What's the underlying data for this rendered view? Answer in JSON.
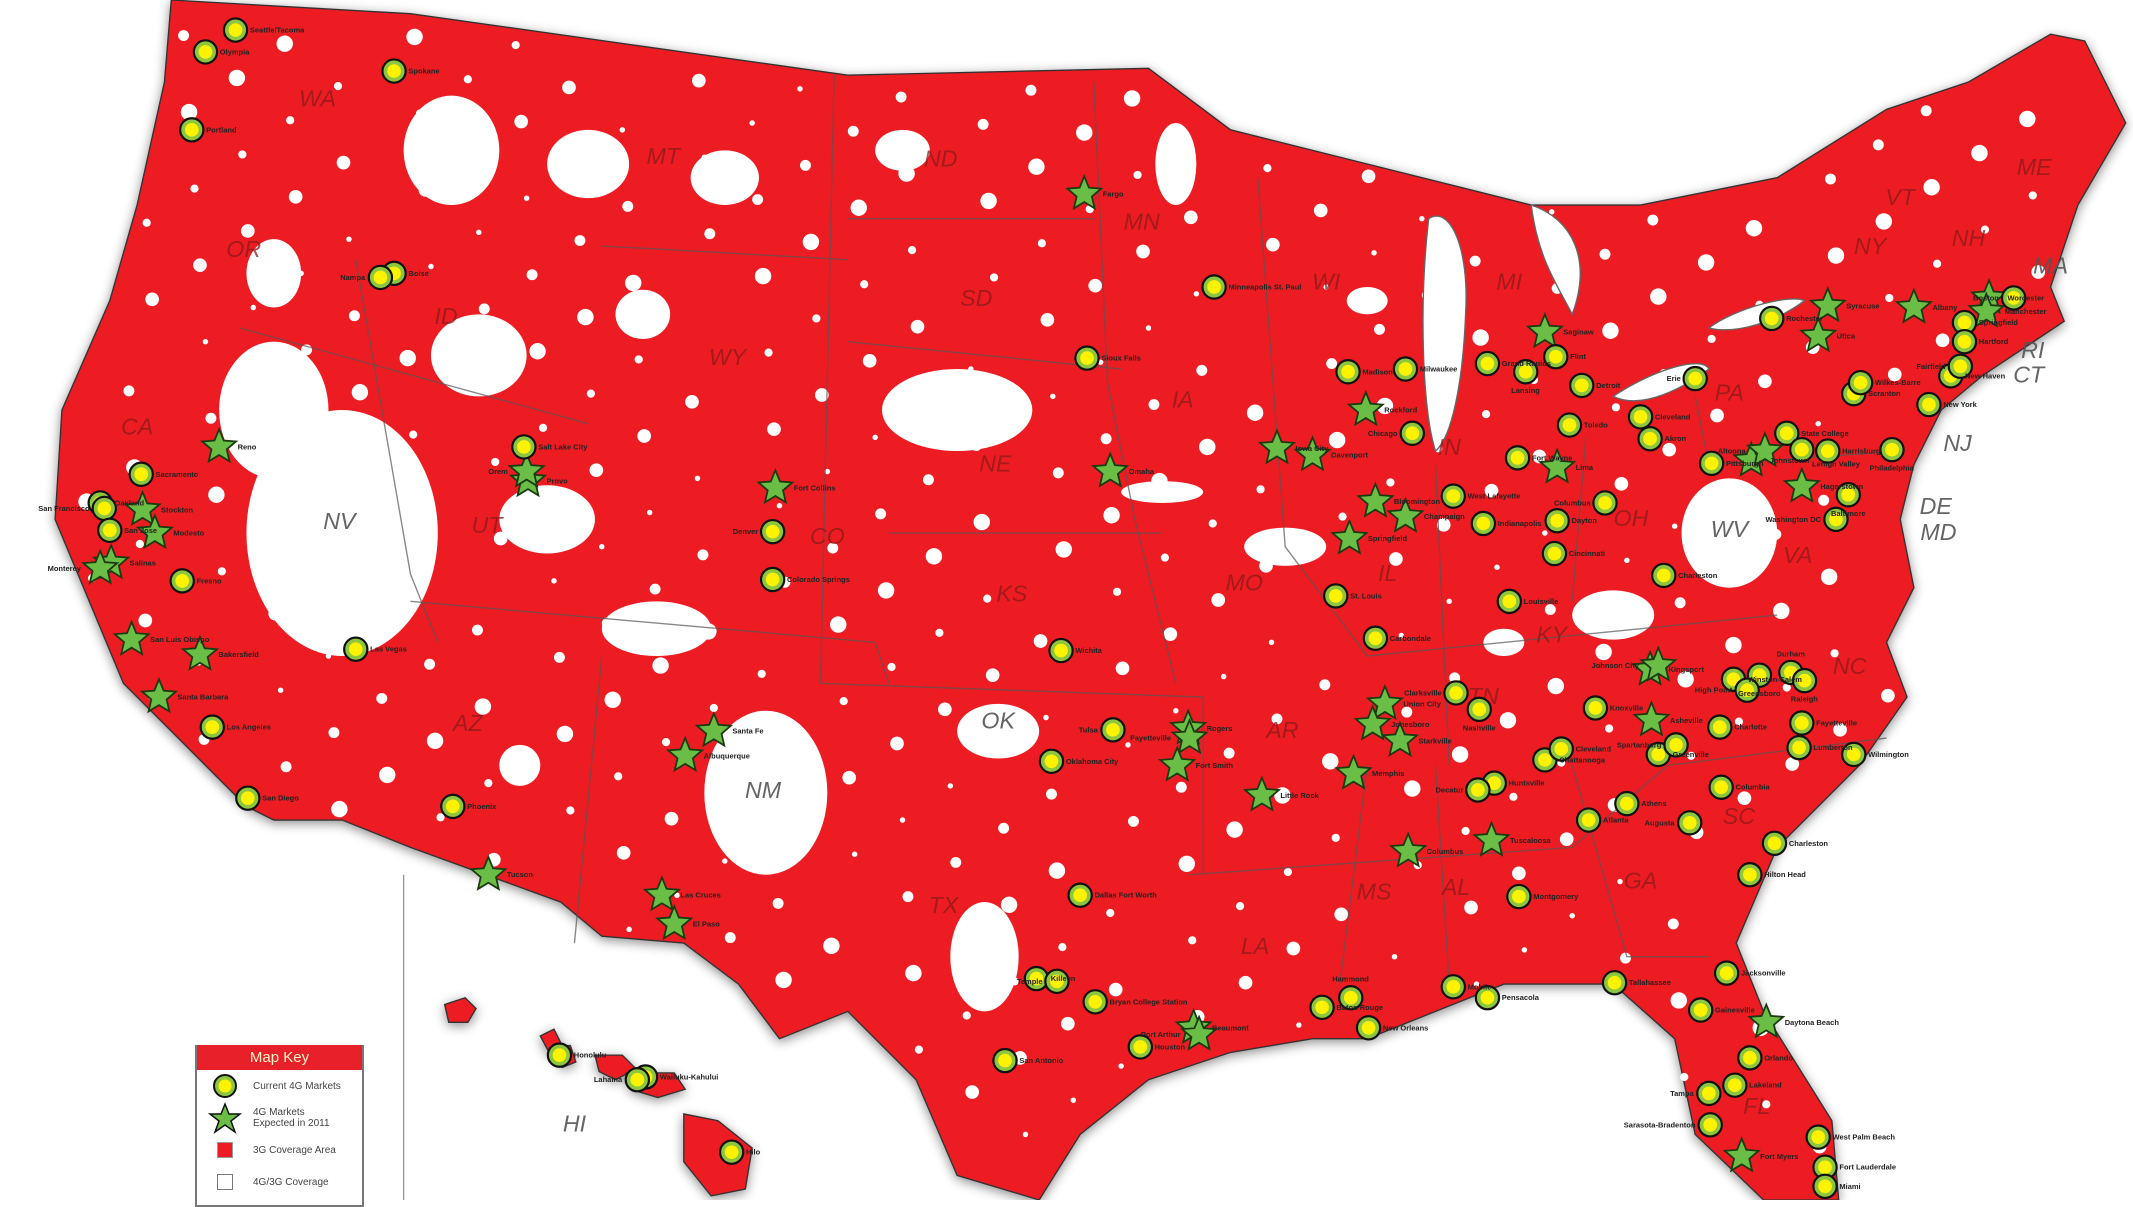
{
  "colors": {
    "coverage_3g": "#ed1c24",
    "coverage_4g3g": "#ffffff",
    "marker_current_fill": "#fff200",
    "marker_current_ring": "#8dc63f",
    "marker_expected": "#6abd45",
    "border": "#555555"
  },
  "states": [
    "WA",
    "OR",
    "CA",
    "NV",
    "ID",
    "MT",
    "WY",
    "UT",
    "AZ",
    "CO",
    "NM",
    "ND",
    "SD",
    "NE",
    "KS",
    "OK",
    "TX",
    "MN",
    "IA",
    "MO",
    "AR",
    "LA",
    "WI",
    "IL",
    "MI",
    "IN",
    "OH",
    "KY",
    "TN",
    "MS",
    "AL",
    "GA",
    "FL",
    "SC",
    "NC",
    "VA",
    "WV",
    "PA",
    "NY",
    "VT",
    "NH",
    "ME",
    "MA",
    "RI",
    "CT",
    "NJ",
    "DE",
    "MD",
    "HI"
  ],
  "current_4g_markets": [
    "Seattle/Tacoma",
    "Olympia",
    "Spokane",
    "Portland",
    "Boise",
    "Nampa",
    "Salt Lake City",
    "Sacramento",
    "Oakland",
    "San Francisco",
    "San Jose",
    "Fresno",
    "Las Vegas",
    "Los Angeles",
    "San Diego",
    "Phoenix",
    "Denver",
    "Colorado Springs",
    "Sioux Falls",
    "Minneapolis St. Paul",
    "Wichita",
    "Tulsa",
    "Oklahoma City",
    "Dallas Fort Worth",
    "Killeen",
    "Temple",
    "Bryan College Station",
    "Houston",
    "San Antonio",
    "St. Louis",
    "Carbondale",
    "Madison",
    "Milwaukee",
    "Chicago",
    "Grand Rapids",
    "Lansing",
    "Flint",
    "Detroit",
    "Toledo",
    "Fort Wayne",
    "West Lafayette",
    "Indianapolis",
    "Dayton",
    "Cincinnati",
    "Columbus",
    "Cleveland",
    "Akron",
    "Erie",
    "Pittsburgh",
    "Charleston",
    "Louisville",
    "State College",
    "Harrisburg",
    "Scranton",
    "Wilkes-Barre",
    "Lehigh Valley",
    "Philadelphia",
    "New York",
    "Baltimore",
    "Washington DC",
    "Rochester",
    "Springfield",
    "Hartford",
    "New Haven",
    "Fairfield",
    "Boston",
    "Clarksville",
    "Nashville",
    "Knoxville",
    "Chattanooga",
    "Cleveland",
    "Greenville",
    "Spartanburg",
    "Charlotte",
    "Winston-Salem",
    "Greensboro",
    "High Point",
    "Durham",
    "Raleigh",
    "Fayetteville",
    "Lumberton",
    "Wilmington",
    "Columbia",
    "Augusta",
    "Atlanta",
    "Athens",
    "Huntsville",
    "Decatur",
    "Charleston",
    "Hilton Head",
    "Montgomery",
    "Mobile",
    "Pensacola",
    "Tallahassee",
    "Baton Rouge",
    "Hammond",
    "New Orleans",
    "Jacksonville",
    "Gainesville",
    "Orlando",
    "Lakeland",
    "Tampa",
    "Sarasota-Bradenton",
    "West Palm Beach",
    "Fort Lauderdale",
    "Miami",
    "Honolulu",
    "Wailuku-Kahului",
    "Lahaina",
    "Hilo"
  ],
  "expected_4g_markets_2011": [
    "Fargo",
    "Reno",
    "Stockton",
    "Modesto",
    "Salinas",
    "Monterey",
    "San Luis Obispo",
    "Bakersfield",
    "Santa Barbara",
    "Provo",
    "Orem",
    "Tucson",
    "Fort Collins",
    "Santa Fe",
    "Albuquerque",
    "Las Cruces",
    "El Paso",
    "Omaha",
    "Iowa City",
    "Davenport",
    "Rockford",
    "Bloomington",
    "Champaign",
    "Springfield",
    "Rogers",
    "Fayetteville",
    "Fort Smith",
    "Little Rock",
    "Union City",
    "Jonesboro",
    "Memphis",
    "Starkville",
    "Columbus",
    "Tuscaloosa",
    "Beaumont",
    "Port Arthur",
    "Fort Myers",
    "Daytona Beach",
    "Saginaw",
    "Lima",
    "Johnstown",
    "Altoona",
    "Hagerstown",
    "Syracuse",
    "Utica",
    "Albany",
    "Worcester",
    "Manchester",
    "Kingsport",
    "Johnson City",
    "Asheville"
  ],
  "legend": {
    "title": "Map Key",
    "items": [
      {
        "label": "Current 4G Markets",
        "type": "circle"
      },
      {
        "label": "4G Markets Expected in 2011",
        "type": "star"
      },
      {
        "label": "3G Coverage Area",
        "type": "red-square"
      },
      {
        "label": "4G/3G Coverage",
        "type": "white-square"
      }
    ]
  }
}
